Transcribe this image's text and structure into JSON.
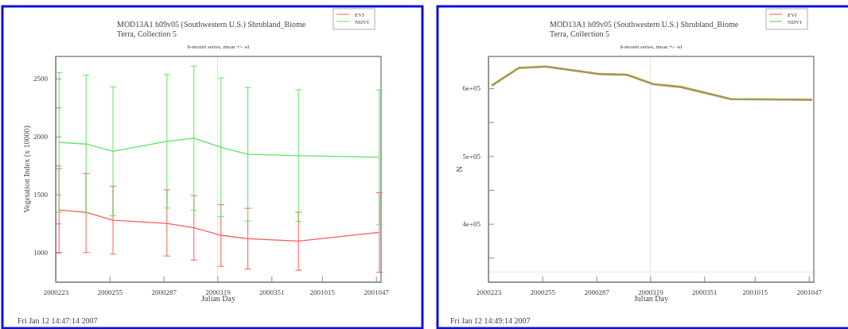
{
  "chart_data": [
    {
      "type": "line",
      "title": "MOD13A1 h09v05 (Southwestern U.S.) Shrubland_Biome",
      "subtitle": "Terra, Collection 5",
      "xlabel": "Julian Day",
      "ylabel": "Vegetation Index (x 10000)",
      "legend": "top right",
      "annotations": [
        "6-month series, mean +/- sd",
        "Fri Jan 12 14:47:14 2007"
      ],
      "x": [
        "2000-08-12",
        "2000-08-28",
        "2000-09-13",
        "2000-10-15",
        "2000-10-31",
        "2000-11-16",
        "2000-12-02",
        "2001-01-01",
        "2001-02-18"
      ],
      "xlim": [
        "2000-08-10",
        "2001-02-19"
      ],
      "xticks": [
        {
          "value": "2000-08-10",
          "label": "2000223"
        },
        {
          "value": "2000-09-11",
          "label": "2000255"
        },
        {
          "value": "2000-10-13",
          "label": "2000287"
        },
        {
          "value": "2000-11-14",
          "label": "2000319"
        },
        {
          "value": "2000-12-16",
          "label": "2000351"
        },
        {
          "value": "2001-01-15",
          "label": "2001015"
        },
        {
          "value": "2001-02-16",
          "label": "2001047"
        }
      ],
      "ylim": [
        745,
        2690
      ],
      "yticks": [
        {
          "value": 1000,
          "label": "1000"
        },
        {
          "value": 1250,
          "label": null
        },
        {
          "value": 1500,
          "label": "1500"
        },
        {
          "value": 1750,
          "label": null
        },
        {
          "value": 2000,
          "label": "2000"
        },
        {
          "value": 2250,
          "label": null
        },
        {
          "value": 2500,
          "label": "2500"
        }
      ],
      "ref_lines": [
        {
          "axis": "x",
          "value": "2000-11-14",
          "color": "#e4e4e4"
        }
      ],
      "series": [
        {
          "name": "EVI",
          "color": "#ff5a5a",
          "values": [
            1365,
            1347,
            1279,
            1251,
            1214,
            1149,
            1119,
            1098,
            1174
          ],
          "errors": [
            [
              1000,
              1723
            ],
            [
              1000,
              1681
            ],
            [
              986,
              1572
            ],
            [
              970,
              1540
            ],
            [
              935,
              1491
            ],
            [
              881,
              1412
            ],
            [
              858,
              1381
            ],
            [
              847,
              1347
            ],
            [
              830,
              1516
            ]
          ]
        },
        {
          "name": "NDVI",
          "color": "#5fe35f",
          "values": [
            1949,
            1935,
            1872,
            1958,
            1986,
            1907,
            1847,
            1835,
            1821
          ],
          "errors": [
            [
              1347,
              2551
            ],
            [
              1342,
              2528
            ],
            [
              1316,
              2428
            ],
            [
              1383,
              2533
            ],
            [
              1365,
              2607
            ],
            [
              1309,
              2505
            ],
            [
              1271,
              2423
            ],
            [
              1268,
              2402
            ],
            [
              1240,
              2402
            ]
          ]
        }
      ]
    },
    {
      "type": "line",
      "title": "MOD13A1 h09v05 (Southwestern U.S.) Shrubland_Biome",
      "subtitle": "Terra, Collection 5",
      "xlabel": "Julian Day",
      "ylabel": "N",
      "legend": "top right",
      "annotations": [
        "6-month series, mean +/- sd",
        "Fri Jan 12 14:49:14 2007"
      ],
      "x": [
        "2000-08-12",
        "2000-08-28",
        "2000-09-13",
        "2000-10-15",
        "2000-10-31",
        "2000-11-16",
        "2000-12-02",
        "2001-01-01",
        "2001-02-18"
      ],
      "xlim": [
        "2000-08-10",
        "2001-02-19"
      ],
      "xticks": [
        {
          "value": "2000-08-10",
          "label": "2000223"
        },
        {
          "value": "2000-09-11",
          "label": "2000255"
        },
        {
          "value": "2000-10-13",
          "label": "2000287"
        },
        {
          "value": "2000-11-14",
          "label": "2000319"
        },
        {
          "value": "2000-12-16",
          "label": "2000351"
        },
        {
          "value": "2001-01-15",
          "label": "2001015"
        },
        {
          "value": "2001-02-16",
          "label": "2001047"
        }
      ],
      "ylim": [
        314000,
        647000
      ],
      "yticks": [
        {
          "value": 350000,
          "label": null
        },
        {
          "value": 400000,
          "label": "4e+05"
        },
        {
          "value": 450000,
          "label": null
        },
        {
          "value": 500000,
          "label": "5e+05"
        },
        {
          "value": 550000,
          "label": null
        },
        {
          "value": 600000,
          "label": "6e+05"
        }
      ],
      "ref_lines": [
        {
          "axis": "x",
          "value": "2000-11-14",
          "color": "#e4e4e4"
        },
        {
          "axis": "y",
          "value": 329000,
          "color": "#e4e4e4"
        }
      ],
      "series": [
        {
          "name": "EVI",
          "color": "#ff5a5a",
          "values": [
            604000,
            630000,
            632000,
            621000,
            620000,
            606000,
            602000,
            584000,
            583000
          ]
        },
        {
          "name": "NDVI",
          "color": "#55cc33",
          "values": [
            604000,
            630000,
            632000,
            621000,
            620000,
            606000,
            602000,
            584000,
            583000
          ]
        }
      ]
    }
  ]
}
